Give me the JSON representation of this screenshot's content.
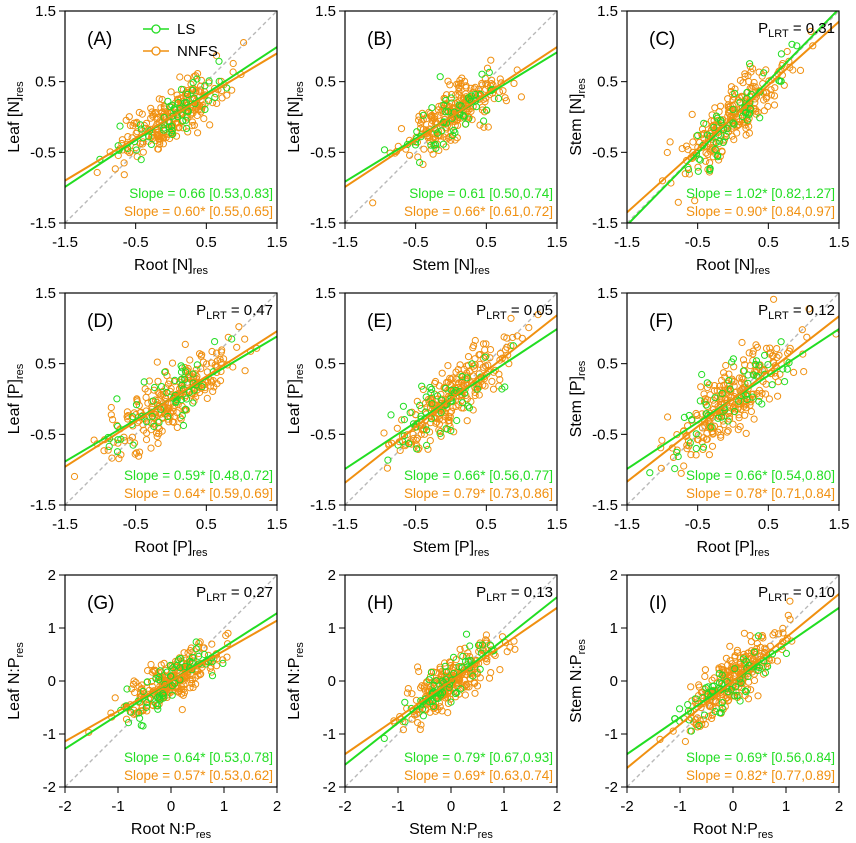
{
  "colors": {
    "ls": "#22dd22",
    "nnfs": "#f09010",
    "identity": "#b8b8b8",
    "axis": "#000000"
  },
  "legend": {
    "ls_label": "LS",
    "nnfs_label": "NNFS"
  },
  "chart_data": [
    {
      "type": "scatter",
      "id": "A",
      "label": "(A)",
      "xlabel": {
        "main": "Root [N]",
        "sub": "res"
      },
      "ylabel": {
        "main": "Leaf [N]",
        "sub": "res"
      },
      "xlim": [
        -1.5,
        1.5
      ],
      "ylim": [
        -1.5,
        1.5
      ],
      "xticks": [
        "-1.5",
        "-0.5",
        "0.5",
        "1.5"
      ],
      "yticks": [
        "-1.5",
        "-0.5",
        "0.5",
        "1.5"
      ],
      "plrt": "",
      "series": [
        {
          "name": "LS",
          "slope": 0.66,
          "intercept": 0.0,
          "slope_text": "Slope = 0.66 [0.53,0.83]"
        },
        {
          "name": "NNFS",
          "slope": 0.6,
          "intercept": 0.0,
          "slope_text": "Slope = 0.60* [0.55,0.65]"
        }
      ],
      "spread": {
        "sx": 0.38,
        "noise": 0.18,
        "n_ls": 55,
        "n_nnfs": 230
      },
      "show_legend": true
    },
    {
      "type": "scatter",
      "id": "B",
      "label": "(B)",
      "xlabel": {
        "main": "Stem [N]",
        "sub": "res"
      },
      "ylabel": {
        "main": "Leaf [N]",
        "sub": "res"
      },
      "xlim": [
        -1.5,
        1.5
      ],
      "ylim": [
        -1.5,
        1.5
      ],
      "xticks": [
        "-1.5",
        "-0.5",
        "0.5",
        "1.5"
      ],
      "yticks": [
        "-1.5",
        "-0.5",
        "0.5",
        "1.5"
      ],
      "plrt": "",
      "series": [
        {
          "name": "LS",
          "slope": 0.61,
          "intercept": 0.0,
          "slope_text": "Slope = 0.61 [0.50,0.74]"
        },
        {
          "name": "NNFS",
          "slope": 0.66,
          "intercept": 0.0,
          "slope_text": "Slope = 0.66* [0.61,0.72]"
        }
      ],
      "spread": {
        "sx": 0.34,
        "noise": 0.18,
        "n_ls": 55,
        "n_nnfs": 230
      },
      "show_legend": false
    },
    {
      "type": "scatter",
      "id": "C",
      "label": "(C)",
      "xlabel": {
        "main": "Root [N]",
        "sub": "res"
      },
      "ylabel": {
        "main": "Stem [N]",
        "sub": "res"
      },
      "xlim": [
        -1.5,
        1.5
      ],
      "ylim": [
        -1.5,
        1.5
      ],
      "xticks": [
        "-1.5",
        "-0.5",
        "0.5",
        "1.5"
      ],
      "yticks": [
        "-1.5",
        "-0.5",
        "0.5",
        "1.5"
      ],
      "plrt": "0.31",
      "series": [
        {
          "name": "LS",
          "slope": 1.02,
          "intercept": 0.0,
          "slope_text": "Slope = 1.02* [0.82,1.27]"
        },
        {
          "name": "NNFS",
          "slope": 0.9,
          "intercept": 0.0,
          "slope_text": "Slope = 0.90* [0.84,0.97]"
        }
      ],
      "spread": {
        "sx": 0.36,
        "noise": 0.2,
        "n_ls": 55,
        "n_nnfs": 230
      },
      "show_legend": false
    },
    {
      "type": "scatter",
      "id": "D",
      "label": "(D)",
      "xlabel": {
        "main": "Root [P]",
        "sub": "res"
      },
      "ylabel": {
        "main": "Leaf [P]",
        "sub": "res"
      },
      "xlim": [
        -1.5,
        1.5
      ],
      "ylim": [
        -1.5,
        1.5
      ],
      "xticks": [
        "-1.5",
        "-0.5",
        "0.5",
        "1.5"
      ],
      "yticks": [
        "-1.5",
        "-0.5",
        "0.5",
        "1.5"
      ],
      "plrt": "0.47",
      "series": [
        {
          "name": "LS",
          "slope": 0.59,
          "intercept": 0.0,
          "slope_text": "Slope = 0.59* [0.48,0.72]"
        },
        {
          "name": "NNFS",
          "slope": 0.64,
          "intercept": 0.0,
          "slope_text": "Slope = 0.64* [0.59,0.69]"
        }
      ],
      "spread": {
        "sx": 0.5,
        "noise": 0.22,
        "n_ls": 55,
        "n_nnfs": 250
      },
      "show_legend": false
    },
    {
      "type": "scatter",
      "id": "E",
      "label": "(E)",
      "xlabel": {
        "main": "Stem [P]",
        "sub": "res"
      },
      "ylabel": {
        "main": "Leaf [P]",
        "sub": "res"
      },
      "xlim": [
        -1.5,
        1.5
      ],
      "ylim": [
        -1.5,
        1.5
      ],
      "xticks": [
        "-1.5",
        "-0.5",
        "0.5",
        "1.5"
      ],
      "yticks": [
        "-1.5",
        "-0.5",
        "0.5",
        "1.5"
      ],
      "plrt": "0.05",
      "series": [
        {
          "name": "LS",
          "slope": 0.66,
          "intercept": 0.0,
          "slope_text": "Slope = 0.66* [0.56,0.77]"
        },
        {
          "name": "NNFS",
          "slope": 0.79,
          "intercept": 0.0,
          "slope_text": "Slope = 0.79* [0.73,0.86]"
        }
      ],
      "spread": {
        "sx": 0.4,
        "noise": 0.22,
        "n_ls": 55,
        "n_nnfs": 250
      },
      "show_legend": false
    },
    {
      "type": "scatter",
      "id": "F",
      "label": "(F)",
      "xlabel": {
        "main": "Root [P]",
        "sub": "res"
      },
      "ylabel": {
        "main": "Stem [P]",
        "sub": "res"
      },
      "xlim": [
        -1.5,
        1.5
      ],
      "ylim": [
        -1.5,
        1.5
      ],
      "xticks": [
        "-1.5",
        "-0.5",
        "0.5",
        "1.5"
      ],
      "yticks": [
        "-1.5",
        "-0.5",
        "0.5",
        "1.5"
      ],
      "plrt": "0.12",
      "series": [
        {
          "name": "LS",
          "slope": 0.66,
          "intercept": 0.0,
          "slope_text": "Slope = 0.66* [0.54,0.80]"
        },
        {
          "name": "NNFS",
          "slope": 0.78,
          "intercept": 0.0,
          "slope_text": "Slope = 0.78* [0.71,0.84]"
        }
      ],
      "spread": {
        "sx": 0.45,
        "noise": 0.24,
        "n_ls": 55,
        "n_nnfs": 250
      },
      "show_legend": false
    },
    {
      "type": "scatter",
      "id": "G",
      "label": "(G)",
      "xlabel": {
        "main": "Root N:P",
        "sub": "res"
      },
      "ylabel": {
        "main": "Leaf N:P",
        "sub": "res"
      },
      "xlim": [
        -2,
        2
      ],
      "ylim": [
        -2,
        2
      ],
      "xticks": [
        "-2",
        "-1",
        "0",
        "1",
        "2"
      ],
      "yticks": [
        "-2",
        "-1",
        "0",
        "1",
        "2"
      ],
      "plrt": "0.27",
      "series": [
        {
          "name": "LS",
          "slope": 0.64,
          "intercept": 0.0,
          "slope_text": "Slope = 0.64* [0.53,0.78]"
        },
        {
          "name": "NNFS",
          "slope": 0.57,
          "intercept": 0.0,
          "slope_text": "Slope = 0.57* [0.53,0.62]"
        }
      ],
      "spread": {
        "sx": 0.45,
        "noise": 0.22,
        "n_ls": 60,
        "n_nnfs": 250
      },
      "show_legend": false
    },
    {
      "type": "scatter",
      "id": "H",
      "label": "(H)",
      "xlabel": {
        "main": "Stem N:P",
        "sub": "res"
      },
      "ylabel": {
        "main": "Leaf N:P",
        "sub": "res"
      },
      "xlim": [
        -2,
        2
      ],
      "ylim": [
        -2,
        2
      ],
      "xticks": [
        "-2",
        "-1",
        "0",
        "1",
        "2"
      ],
      "yticks": [
        "-2",
        "-1",
        "0",
        "1",
        "2"
      ],
      "plrt": "0.13",
      "series": [
        {
          "name": "LS",
          "slope": 0.79,
          "intercept": 0.0,
          "slope_text": "Slope = 0.79* [0.67,0.93]"
        },
        {
          "name": "NNFS",
          "slope": 0.69,
          "intercept": 0.0,
          "slope_text": "Slope = 0.69* [0.63,0.74]"
        }
      ],
      "spread": {
        "sx": 0.4,
        "noise": 0.22,
        "n_ls": 60,
        "n_nnfs": 250
      },
      "show_legend": false
    },
    {
      "type": "scatter",
      "id": "I",
      "label": "(I)",
      "xlabel": {
        "main": "Root N:P",
        "sub": "res"
      },
      "ylabel": {
        "main": "Stem N:P",
        "sub": "res"
      },
      "xlim": [
        -2,
        2
      ],
      "ylim": [
        -2,
        2
      ],
      "xticks": [
        "-2",
        "-1",
        "0",
        "1",
        "2"
      ],
      "yticks": [
        "-2",
        "-1",
        "0",
        "1",
        "2"
      ],
      "plrt": "0.10",
      "series": [
        {
          "name": "LS",
          "slope": 0.69,
          "intercept": 0.0,
          "slope_text": "Slope = 0.69* [0.56,0.84]"
        },
        {
          "name": "NNFS",
          "slope": 0.82,
          "intercept": 0.0,
          "slope_text": "Slope = 0.82* [0.77,0.89]"
        }
      ],
      "spread": {
        "sx": 0.45,
        "noise": 0.26,
        "n_ls": 60,
        "n_nnfs": 250
      },
      "show_legend": false
    }
  ]
}
